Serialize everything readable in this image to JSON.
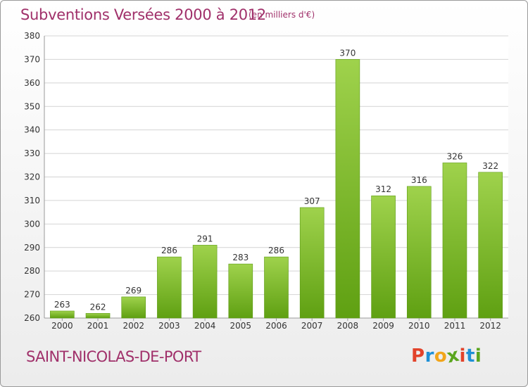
{
  "header": {
    "title": "Subventions Versées 2000 à 2012",
    "subtitle": "(en milliers d'€)"
  },
  "footer": {
    "commune": "SAINT-NICOLAS-DE-PORT",
    "logo_letters": [
      "P",
      "r",
      "o",
      "x",
      "i",
      "t",
      "i"
    ]
  },
  "colors": {
    "title": "#a0306a",
    "bar_top": "#9fd24c",
    "bar_bottom": "#5fa012",
    "grid": "#d4d4d4",
    "logo": [
      "#e2432b",
      "#1e90d6",
      "#f2a51a",
      "#5aa51e",
      "#e2432b",
      "#1e90d6",
      "#5aa51e"
    ]
  },
  "chart_data": {
    "type": "bar",
    "categories": [
      "2000",
      "2001",
      "2002",
      "2003",
      "2004",
      "2005",
      "2006",
      "2007",
      "2008",
      "2009",
      "2010",
      "2011",
      "2012"
    ],
    "values": [
      263,
      262,
      269,
      286,
      291,
      283,
      286,
      307,
      370,
      312,
      316,
      326,
      322
    ],
    "data_labels": [
      "263",
      "262",
      "269",
      "286",
      "291",
      "283",
      "286",
      "307",
      "370",
      "312",
      "316",
      "326",
      "322"
    ],
    "y_ticks": [
      260,
      270,
      280,
      290,
      300,
      310,
      320,
      330,
      340,
      350,
      360,
      370,
      380
    ],
    "title": "Subventions Versées 2000 à 2012",
    "xlabel": "",
    "ylabel": "",
    "ylim": [
      260,
      380
    ],
    "grid": true
  }
}
